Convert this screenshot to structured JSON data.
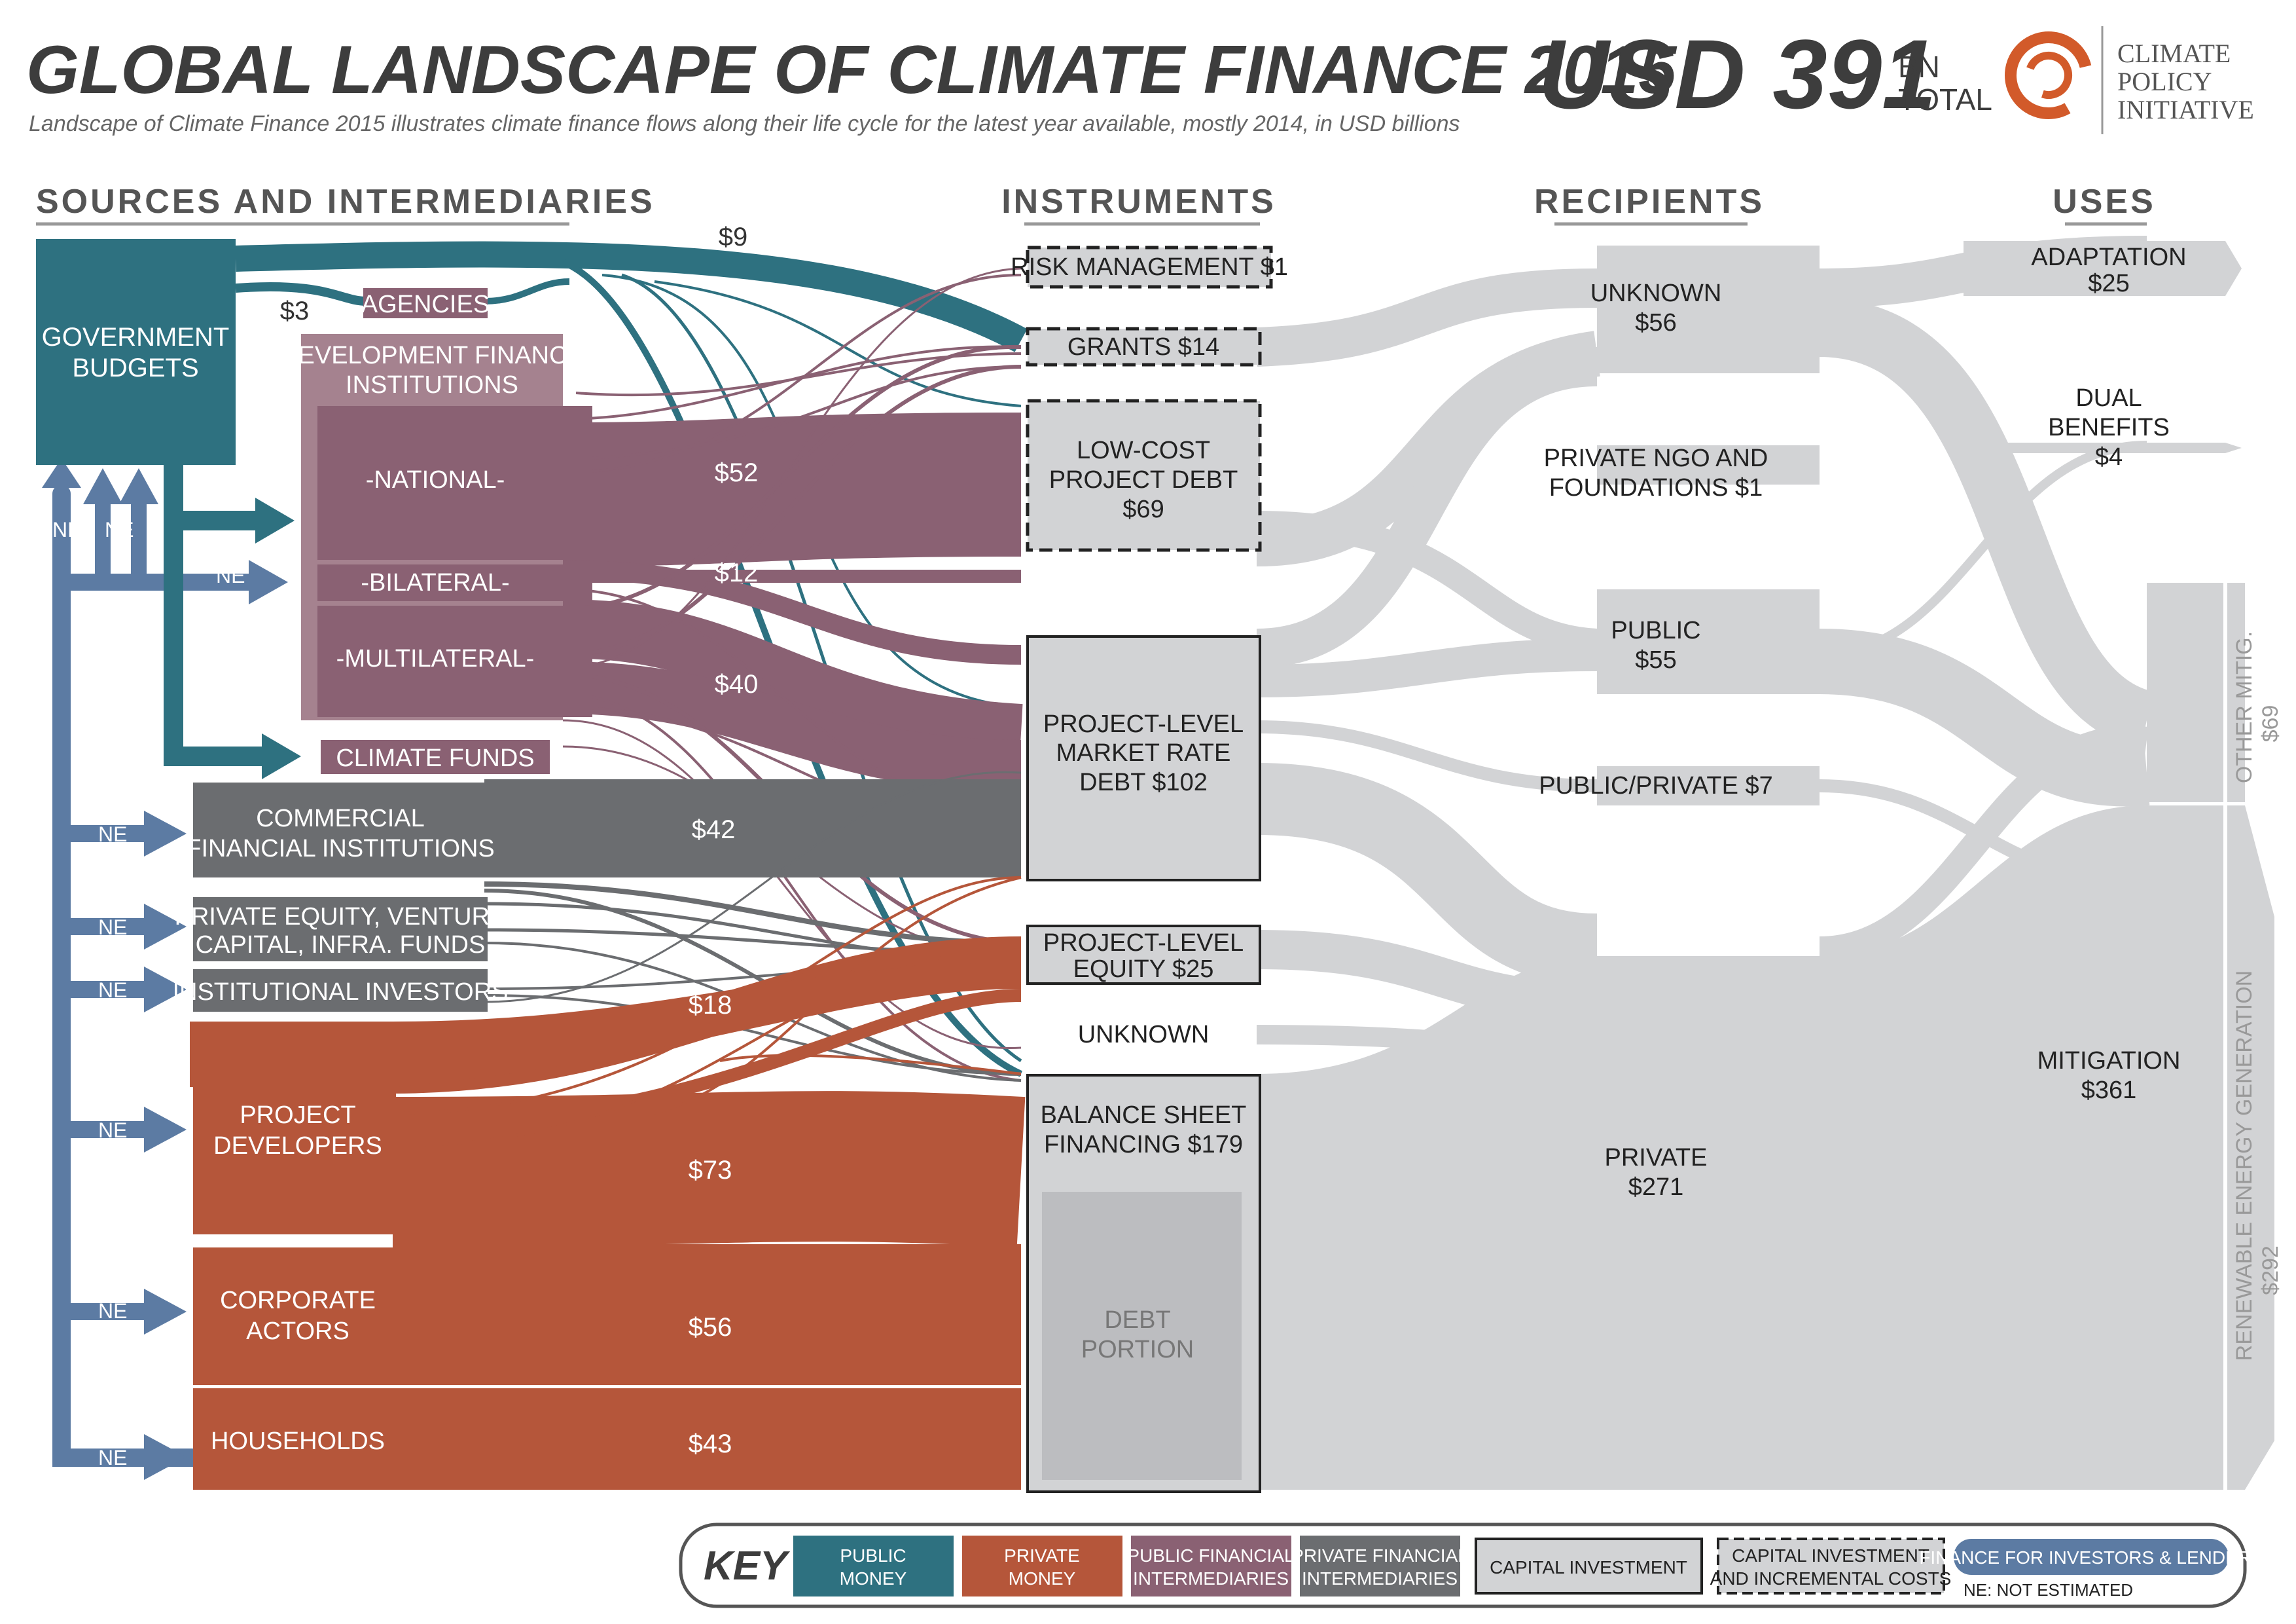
{
  "header": {
    "title": "GLOBAL LANDSCAPE OF CLIMATE FINANCE 2015",
    "subtitle": "Landscape of Climate Finance 2015 illustrates climate finance flows along their life cycle for the latest year available, mostly 2014, in USD billions",
    "total_value": "USD 391",
    "total_unit_1": "BN",
    "total_unit_2": "TOTAL",
    "org_line_1": "CLIMATE",
    "org_line_2": "POLICY",
    "org_line_3": "INITIATIVE"
  },
  "columns": {
    "sources": "SOURCES AND INTERMEDIARIES",
    "instruments": "INSTRUMENTS",
    "recipients": "RECIPIENTS",
    "uses": "USES"
  },
  "sources": {
    "gov_1": "GOVERNMENT",
    "gov_2": "BUDGETS",
    "agencies": "AGENCIES",
    "dfi_1": "DEVELOPMENT FINANCE",
    "dfi_2": "INSTITUTIONS",
    "national": "-NATIONAL-",
    "bilateral": "-BILATERAL-",
    "multilateral": "-MULTILATERAL-",
    "climate_funds": "CLIMATE FUNDS",
    "commercial_1": "COMMERCIAL",
    "commercial_2": "FINANCIAL INSTITUTIONS",
    "pe_1": "PRIVATE EQUITY, VENTURE",
    "pe_2": "CAPITAL, INFRA. FUNDS",
    "institutional": "INSTITUTIONAL INVESTORS",
    "devs_1": "PROJECT",
    "devs_2": "DEVELOPERS",
    "corp_1": "CORPORATE",
    "corp_2": "ACTORS",
    "households": "HOUSEHOLDS",
    "ne": "NE"
  },
  "flow_values": {
    "gov_grants": "$9",
    "gov_agencies": "$3",
    "national": "$52",
    "bilateral": "$12",
    "multilateral": "$40",
    "commercial": "$42",
    "developers_equity": "$18",
    "developers_bs": "$73",
    "corporate": "$56",
    "households": "$43"
  },
  "instruments": {
    "risk": "RISK MANAGEMENT $1",
    "grants": "GRANTS $14",
    "lowcost_1": "LOW-COST",
    "lowcost_2": "PROJECT DEBT",
    "lowcost_3": "$69",
    "market_1": "PROJECT-LEVEL",
    "market_2": "MARKET RATE",
    "market_3": "DEBT $102",
    "equity_1": "PROJECT-LEVEL",
    "equity_2": "EQUITY $25",
    "unknown": "UNKNOWN",
    "bs_1": "BALANCE SHEET",
    "bs_2": "FINANCING $179",
    "debt_1": "DEBT",
    "debt_2": "PORTION"
  },
  "recipients": {
    "unknown_1": "UNKNOWN",
    "unknown_2": "$56",
    "ngo_1": "PRIVATE NGO AND",
    "ngo_2": "FOUNDATIONS $1",
    "public_1": "PUBLIC",
    "public_2": "$55",
    "pp": "PUBLIC/PRIVATE $7",
    "private_1": "PRIVATE",
    "private_2": "$271"
  },
  "uses": {
    "adapt_1": "ADAPTATION",
    "adapt_2": "$25",
    "dual_1": "DUAL",
    "dual_2": "BENEFITS",
    "dual_3": "$4",
    "mit_1": "MITIGATION",
    "mit_2": "$361",
    "other_1": "OTHER MITIG.",
    "other_2": "$69",
    "reg_1": "RENEWABLE ENERGY GENERATION",
    "reg_2": "$292"
  },
  "key": {
    "title": "KEY",
    "public_1": "PUBLIC",
    "public_2": "MONEY",
    "private_1": "PRIVATE",
    "private_2": "MONEY",
    "pfi_1": "PUBLIC FINANCIAL",
    "pfi_2": "INTERMEDIARIES",
    "prfi_1": "PRIVATE FINANCIAL",
    "prfi_2": "INTERMEDIARIES",
    "capital": "CAPITAL INVESTMENT",
    "incr_1": "CAPITAL INVESTMENT",
    "incr_2": "AND INCREMENTAL COSTS",
    "investors": "FINANCE FOR INVESTORS & LENDERS",
    "ne": "NE: NOT ESTIMATED"
  },
  "colors": {
    "public": "#2e7180",
    "private": "#b5563a",
    "pfi": "#8a6173",
    "prfi": "#6b6d70",
    "investor": "#5c7ba3",
    "grey": "#d2d3d5",
    "dark": "#3d3d3d"
  }
}
